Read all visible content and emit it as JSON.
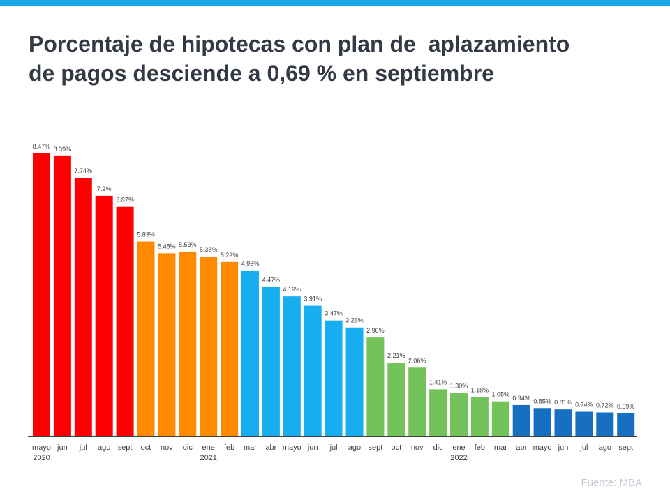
{
  "title": "Porcentaje de hipotecas con plan de  aplazamiento\nde pagos desciende a 0,69 % en septiembre",
  "source": "Fuente: MBA",
  "colors": {
    "topbar": "#19a7ea",
    "2020": "#ff0000",
    "2020b": "#ff8a00",
    "2021a": "#16aeef",
    "2021b": "#74c35a",
    "2022": "#166fc1"
  },
  "chart_data": {
    "type": "bar",
    "title": "Porcentaje de hipotecas con plan de  aplazamiento de pagos desciende a 0,69 % en septiembre",
    "categories": [
      "mayo",
      "jun",
      "jul",
      "ago",
      "sept",
      "oct",
      "nov",
      "dic",
      "ene",
      "feb",
      "mar",
      "abr",
      "mayo",
      "jun",
      "jul",
      "ago",
      "sept",
      "oct",
      "nov",
      "dic",
      "ene",
      "feb",
      "mar",
      "abr",
      "mayo",
      "jun",
      "jul",
      "ago",
      "sept"
    ],
    "year_labels": {
      "0": "2020",
      "8": "2021",
      "20": "2022"
    },
    "values": [
      8.47,
      8.39,
      7.74,
      7.2,
      6.87,
      5.83,
      5.48,
      5.53,
      5.38,
      5.22,
      4.96,
      4.47,
      4.19,
      3.91,
      3.47,
      3.26,
      2.96,
      2.21,
      2.06,
      1.41,
      1.3,
      1.18,
      1.05,
      0.94,
      0.85,
      0.81,
      0.74,
      0.72,
      0.69
    ],
    "data_labels": [
      "8.47%",
      "8.39%",
      "7.74%",
      "7.2%",
      "6.87%",
      "5.83%",
      "5.48%",
      "5.53%",
      "5.38%",
      "5.22%",
      "4.96%",
      "4.47%",
      "4.19%",
      "3.91%",
      "3.47%",
      "3.26%",
      "2.96%",
      "2.21%",
      "2.06%",
      "1.41%",
      "1.30%",
      "1.18%",
      "1.05%",
      "0.94%",
      "0.85%",
      "0.81%",
      "0.74%",
      "0.72%",
      "0.69%"
    ],
    "bar_colors": [
      "#ff0000",
      "#ff0000",
      "#ff0000",
      "#ff0000",
      "#ff0000",
      "#ff8a00",
      "#ff8a00",
      "#ff8a00",
      "#ff8a00",
      "#ff8a00",
      "#16aeef",
      "#16aeef",
      "#16aeef",
      "#16aeef",
      "#16aeef",
      "#16aeef",
      "#74c35a",
      "#74c35a",
      "#74c35a",
      "#74c35a",
      "#74c35a",
      "#74c35a",
      "#74c35a",
      "#166fc1",
      "#166fc1",
      "#166fc1",
      "#166fc1",
      "#166fc1",
      "#166fc1"
    ],
    "ylim": [
      0,
      8.5
    ],
    "grid": false,
    "legend": "none",
    "xlabel": "",
    "ylabel": ""
  }
}
